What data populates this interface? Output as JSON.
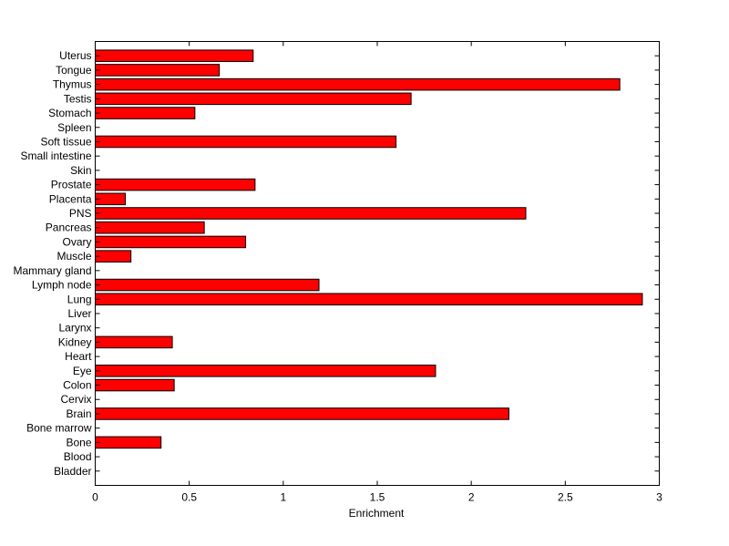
{
  "chart_data": {
    "type": "bar",
    "orientation": "horizontal",
    "xlabel": "Enrichment",
    "ylabel": "",
    "title": "",
    "xlim": [
      0,
      3
    ],
    "xticks": [
      "0",
      "0.5",
      "1",
      "1.5",
      "2",
      "2.5",
      "3"
    ],
    "grid": false,
    "legend": "none",
    "bar_color": "#ff0000",
    "categories": [
      "Uterus",
      "Tongue",
      "Thymus",
      "Testis",
      "Stomach",
      "Spleen",
      "Soft tissue",
      "Small intestine",
      "Skin",
      "Prostate",
      "Placenta",
      "PNS",
      "Pancreas",
      "Ovary",
      "Muscle",
      "Mammary gland",
      "Lymph node",
      "Lung",
      "Liver",
      "Larynx",
      "Kidney",
      "Heart",
      "Eye",
      "Colon",
      "Cervix",
      "Brain",
      "Bone marrow",
      "Bone",
      "Blood",
      "Bladder"
    ],
    "values": [
      0.84,
      0.66,
      2.79,
      1.68,
      0.53,
      0,
      1.6,
      0,
      0,
      0.85,
      0.16,
      2.29,
      0.58,
      0.8,
      0.19,
      0,
      1.19,
      2.91,
      0,
      0,
      0.41,
      0,
      1.81,
      0.42,
      0,
      2.2,
      0,
      0.35,
      0,
      0
    ]
  }
}
